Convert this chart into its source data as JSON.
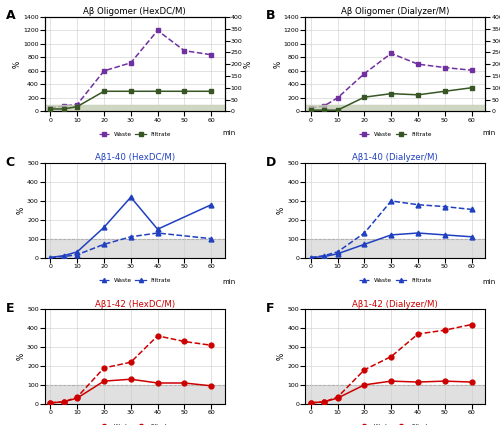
{
  "panel_A": {
    "title": "Aβ Oligomer (HexDC/M)",
    "x": [
      0,
      5,
      10,
      20,
      30,
      40,
      50,
      60
    ],
    "waste_left": [
      50,
      80,
      100,
      600,
      720,
      1200,
      900,
      840
    ],
    "filtrate_right": [
      10,
      10,
      20,
      85,
      85,
      85,
      85,
      85
    ],
    "waste_label": "Waste",
    "filtrate_label": "Filtrate",
    "ylim_left": [
      0,
      1400
    ],
    "ylim_right": [
      0,
      400
    ],
    "yticks_left": [
      0,
      200,
      400,
      600,
      800,
      1000,
      1200,
      1400
    ],
    "yticks_right": [
      0,
      50,
      100,
      150,
      200,
      250,
      300,
      350,
      400
    ],
    "label": "A"
  },
  "panel_B": {
    "title": "Aβ Oligomer (Dialyzer/M)",
    "x": [
      0,
      5,
      10,
      20,
      30,
      40,
      50,
      60
    ],
    "waste_left": [
      50,
      80,
      200,
      560,
      860,
      700,
      650,
      610
    ],
    "filtrate_right": [
      5,
      5,
      5,
      60,
      75,
      70,
      85,
      100
    ],
    "waste_label": "Waste",
    "filtrate_label": "Filtrate",
    "ylim_left": [
      0,
      1400
    ],
    "ylim_right": [
      0,
      400
    ],
    "yticks_left": [
      0,
      200,
      400,
      600,
      800,
      1000,
      1200,
      1400
    ],
    "yticks_right": [
      0,
      50,
      100,
      150,
      200,
      250,
      300,
      350,
      400
    ],
    "label": "B"
  },
  "panel_C": {
    "title": "Aβ1-40 (HexDC/M)",
    "x": [
      0,
      5,
      10,
      20,
      30,
      40,
      60
    ],
    "waste": [
      0,
      5,
      15,
      70,
      110,
      130,
      100
    ],
    "filtrate": [
      0,
      10,
      30,
      160,
      320,
      150,
      280
    ],
    "waste_label": "Waste",
    "filtrate_label": "Filtrate",
    "ylim": [
      0,
      500
    ],
    "yticks": [
      0,
      100,
      200,
      300,
      400,
      500
    ],
    "label": "C",
    "color": "#2040c0"
  },
  "panel_D": {
    "title": "Aβ1-40 (Dialyzer/M)",
    "x": [
      0,
      5,
      10,
      20,
      30,
      40,
      50,
      60
    ],
    "waste": [
      0,
      10,
      30,
      130,
      300,
      280,
      270,
      255
    ],
    "filtrate": [
      0,
      5,
      20,
      70,
      120,
      130,
      120,
      110
    ],
    "waste_label": "Waste",
    "filtrate_label": "Filtrate",
    "ylim": [
      0,
      500
    ],
    "yticks": [
      0,
      100,
      200,
      300,
      400,
      500
    ],
    "label": "D",
    "color": "#2040c0"
  },
  "panel_E": {
    "title": "Aβ1-42 (HexDC/M)",
    "x": [
      0,
      5,
      10,
      20,
      30,
      40,
      50,
      60
    ],
    "waste": [
      5,
      10,
      35,
      190,
      220,
      360,
      330,
      310
    ],
    "filtrate": [
      5,
      10,
      30,
      120,
      130,
      110,
      110,
      95
    ],
    "waste_label": "Waste",
    "filtrate_label": "Filtrate",
    "ylim": [
      0,
      500
    ],
    "yticks": [
      0,
      100,
      200,
      300,
      400,
      500
    ],
    "label": "E",
    "color": "#cc0000"
  },
  "panel_F": {
    "title": "Aβ1-42 (Dialyzer/M)",
    "x": [
      0,
      5,
      10,
      20,
      30,
      40,
      50,
      60
    ],
    "waste": [
      5,
      10,
      35,
      180,
      250,
      370,
      390,
      420
    ],
    "filtrate": [
      5,
      10,
      30,
      100,
      120,
      115,
      120,
      115
    ],
    "waste_label": "Waste",
    "filtrate_label": "Filtrate",
    "ylim": [
      0,
      500
    ],
    "yticks": [
      0,
      100,
      200,
      300,
      400,
      500
    ],
    "label": "F",
    "color": "#cc0000"
  },
  "purple_color": "#7030A0",
  "green_color": "#375623",
  "xlabel": "min",
  "xticks": [
    0,
    10,
    20,
    30,
    40,
    50,
    60
  ],
  "grid_color": "#cccccc",
  "shade_gray": "#d3d3d3",
  "shade_purple": "#e0c0f0",
  "shade_green": "#c6d9b0"
}
